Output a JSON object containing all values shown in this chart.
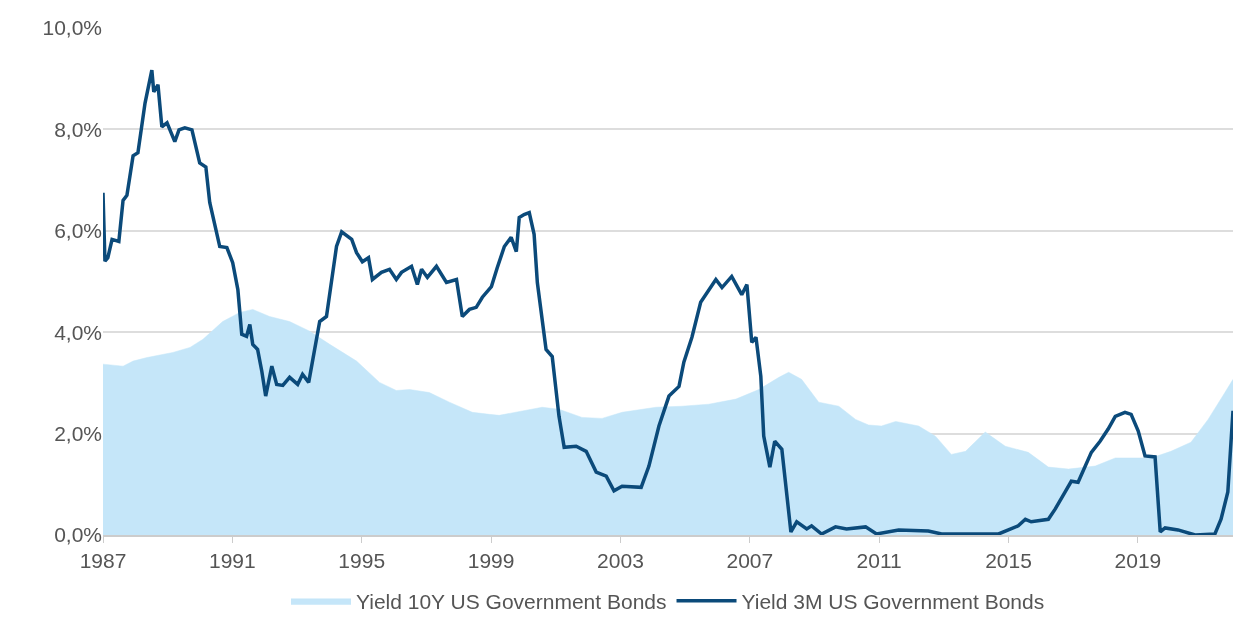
{
  "chart_data": {
    "type": "line",
    "xlim": [
      1987,
      2021.94
    ],
    "xticks": [
      1987,
      1991,
      1995,
      1999,
      2003,
      2007,
      2011,
      2015,
      2019
    ],
    "ylim": [
      0,
      10
    ],
    "yticks": [
      {
        "value": 0,
        "label": "0,0%"
      },
      {
        "value": 2,
        "label": "2,0%"
      },
      {
        "value": 4,
        "label": "4,0%"
      },
      {
        "value": 6,
        "label": "6,0%"
      },
      {
        "value": 8,
        "label": "8,0%"
      },
      {
        "value": 10,
        "label": "10,0%"
      }
    ],
    "grid": "y",
    "legend": "bottom",
    "series": [
      {
        "name": "Yield 10Y US Government Bonds",
        "type": "area",
        "color": "#c5e6f9",
        "x": [
          1987.0,
          1987.62,
          1987.93,
          1988.36,
          1989.16,
          1989.69,
          1990.09,
          1990.7,
          1991.23,
          1991.63,
          1992.15,
          1992.77,
          1993.39,
          1994.01,
          1994.84,
          1995.55,
          1996.07,
          1996.48,
          1997.09,
          1997.71,
          1998.42,
          1998.94,
          1999.25,
          2000.58,
          2001.1,
          2001.81,
          2002.43,
          2003.05,
          2004.1,
          2004.9,
          2005.73,
          2006.57,
          2007.28,
          2007.9,
          2008.2,
          2008.6,
          2009.13,
          2009.75,
          2010.27,
          2010.67,
          2011.07,
          2011.51,
          2012.22,
          2012.74,
          2013.23,
          2013.67,
          2014.28,
          2014.9,
          2015.61,
          2016.23,
          2016.85,
          2017.68,
          2018.3,
          2019.41,
          2020.02,
          2020.64,
          2021.17,
          2021.69,
          2021.94
        ],
        "values": [
          3.37,
          3.33,
          3.43,
          3.5,
          3.6,
          3.7,
          3.86,
          4.21,
          4.39,
          4.45,
          4.31,
          4.21,
          4.02,
          3.76,
          3.43,
          3.01,
          2.85,
          2.87,
          2.81,
          2.62,
          2.42,
          2.38,
          2.36,
          2.52,
          2.48,
          2.32,
          2.3,
          2.42,
          2.52,
          2.54,
          2.58,
          2.68,
          2.87,
          3.11,
          3.21,
          3.07,
          2.62,
          2.54,
          2.28,
          2.17,
          2.15,
          2.24,
          2.15,
          1.95,
          1.59,
          1.65,
          2.03,
          1.75,
          1.63,
          1.34,
          1.3,
          1.36,
          1.52,
          1.52,
          1.65,
          1.83,
          2.28,
          2.81,
          3.07
        ]
      },
      {
        "name": "Yield 3M US Government Bonds",
        "color": "#0b4a7a",
        "x": [
          1987.0,
          1987.06,
          1987.15,
          1987.28,
          1987.49,
          1987.62,
          1987.74,
          1987.93,
          1988.08,
          1988.3,
          1988.51,
          1988.57,
          1988.7,
          1988.82,
          1988.98,
          1989.22,
          1989.35,
          1989.53,
          1989.75,
          1989.99,
          1990.18,
          1990.3,
          1990.61,
          1990.83,
          1991.01,
          1991.17,
          1991.29,
          1991.44,
          1991.54,
          1991.63,
          1991.78,
          1991.91,
          1992.03,
          1992.22,
          1992.37,
          1992.56,
          1992.77,
          1993.02,
          1993.17,
          1993.36,
          1993.7,
          1993.91,
          1994.22,
          1994.38,
          1994.69,
          1994.84,
          1995.02,
          1995.21,
          1995.33,
          1995.61,
          1995.86,
          1996.07,
          1996.23,
          1996.54,
          1996.72,
          1996.85,
          1997.03,
          1997.31,
          1997.62,
          1997.93,
          1998.11,
          1998.33,
          1998.54,
          1998.73,
          1999.01,
          1999.19,
          1999.41,
          1999.62,
          1999.78,
          1999.87,
          2000.02,
          2000.18,
          2000.33,
          2000.43,
          2000.7,
          2000.89,
          2001.1,
          2001.26,
          2001.63,
          2001.94,
          2002.25,
          2002.56,
          2002.8,
          2003.05,
          2003.64,
          2003.88,
          2004.19,
          2004.5,
          2004.81,
          2004.96,
          2005.21,
          2005.48,
          2005.95,
          2006.14,
          2006.44,
          2006.75,
          2006.91,
          2007.06,
          2007.19,
          2007.34,
          2007.43,
          2007.62,
          2007.77,
          2007.99,
          2008.27,
          2008.45,
          2008.76,
          2008.91,
          2009.22,
          2009.65,
          2009.99,
          2010.58,
          2010.92,
          2011.6,
          2012.52,
          2012.93,
          2014.69,
          2015.3,
          2015.52,
          2015.7,
          2016.23,
          2016.44,
          2016.75,
          2016.94,
          2017.15,
          2017.56,
          2017.83,
          2018.08,
          2018.3,
          2018.6,
          2018.79,
          2019.01,
          2019.22,
          2019.53,
          2019.69,
          2019.84,
          2020.24,
          2020.77,
          2021.38,
          2021.57,
          2021.78,
          2021.94
        ],
        "values": [
          6.75,
          5.4,
          5.47,
          5.83,
          5.79,
          6.6,
          6.7,
          7.48,
          7.54,
          8.52,
          9.17,
          8.74,
          8.88,
          8.05,
          8.13,
          7.76,
          7.99,
          8.03,
          7.99,
          7.34,
          7.26,
          6.56,
          5.69,
          5.67,
          5.37,
          4.84,
          3.96,
          3.92,
          4.15,
          3.76,
          3.66,
          3.23,
          2.74,
          3.33,
          2.97,
          2.95,
          3.11,
          2.97,
          3.17,
          3.01,
          4.21,
          4.31,
          5.69,
          5.98,
          5.83,
          5.57,
          5.39,
          5.47,
          5.04,
          5.18,
          5.24,
          5.04,
          5.18,
          5.3,
          4.94,
          5.24,
          5.08,
          5.3,
          4.98,
          5.04,
          4.31,
          4.45,
          4.49,
          4.69,
          4.9,
          5.27,
          5.69,
          5.87,
          5.59,
          6.26,
          6.32,
          6.36,
          5.93,
          4.98,
          3.66,
          3.52,
          2.34,
          1.73,
          1.75,
          1.65,
          1.24,
          1.16,
          0.87,
          0.96,
          0.94,
          1.36,
          2.15,
          2.74,
          2.93,
          3.41,
          3.9,
          4.59,
          5.04,
          4.88,
          5.1,
          4.74,
          4.94,
          3.8,
          3.9,
          3.13,
          1.95,
          1.34,
          1.85,
          1.69,
          0.06,
          0.26,
          0.12,
          0.18,
          0.02,
          0.16,
          0.12,
          0.16,
          0.02,
          0.1,
          0.08,
          0.02,
          0.02,
          0.18,
          0.31,
          0.26,
          0.31,
          0.51,
          0.85,
          1.06,
          1.04,
          1.63,
          1.85,
          2.09,
          2.34,
          2.42,
          2.38,
          2.05,
          1.56,
          1.54,
          0.06,
          0.14,
          0.1,
          0.0,
          0.02,
          0.31,
          0.85,
          2.45
        ]
      }
    ]
  }
}
